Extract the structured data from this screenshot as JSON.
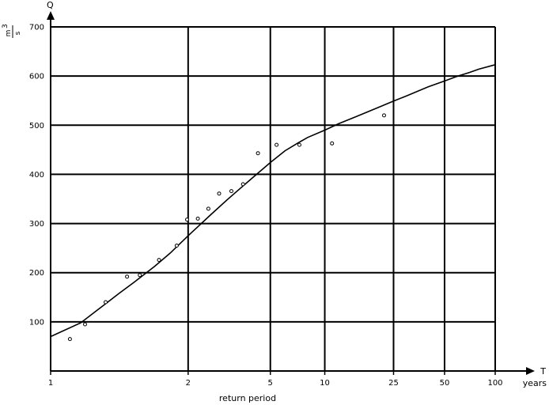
{
  "chart_data": {
    "type": "scatter",
    "title": "",
    "xlabel": "return period",
    "x_axis_symbol": "T",
    "x_axis_unit": "years",
    "ylabel": "Q",
    "y_unit": {
      "numerator": "m",
      "exponent": "3",
      "denominator": "s"
    },
    "x_scale": "return-period",
    "x_ticks": [
      "1",
      "2",
      "5",
      "10",
      "25",
      "50",
      "100"
    ],
    "y_ticks": [
      "100",
      "200",
      "300",
      "400",
      "500",
      "600",
      "700"
    ],
    "ylim": [
      0,
      700
    ],
    "xlim": [
      1,
      100
    ],
    "grid": true,
    "series": [
      {
        "kind": "observed points",
        "x": [
          1.03,
          1.06,
          1.13,
          1.25,
          1.35,
          1.55,
          1.8,
          1.98,
          2.2,
          2.45,
          2.75,
          3.15,
          3.6,
          4.3,
          5.4,
          7.2,
          11,
          22
        ],
        "y": [
          65,
          95,
          140,
          192,
          195,
          226,
          255,
          308,
          310,
          330,
          361,
          366,
          380,
          443,
          460,
          460,
          463,
          520
        ]
      },
      {
        "kind": "fitted curve",
        "x": [
          1.01,
          1.05,
          1.1,
          1.2,
          1.3,
          1.5,
          1.7,
          2,
          2.5,
          3,
          3.5,
          4,
          5,
          6,
          7,
          8,
          10,
          12,
          15,
          20,
          25,
          30,
          40,
          50,
          60,
          70,
          80,
          100
        ],
        "y": [
          70,
          98,
          125,
          158,
          180,
          213,
          240,
          275,
          317,
          348,
          372,
          392,
          424,
          448,
          463,
          475,
          490,
          503,
          517,
          535,
          549,
          560,
          578,
          590,
          600,
          607,
          614,
          623
        ]
      }
    ],
    "colors": {
      "background": "#ffffff",
      "ink": "#000000"
    }
  }
}
